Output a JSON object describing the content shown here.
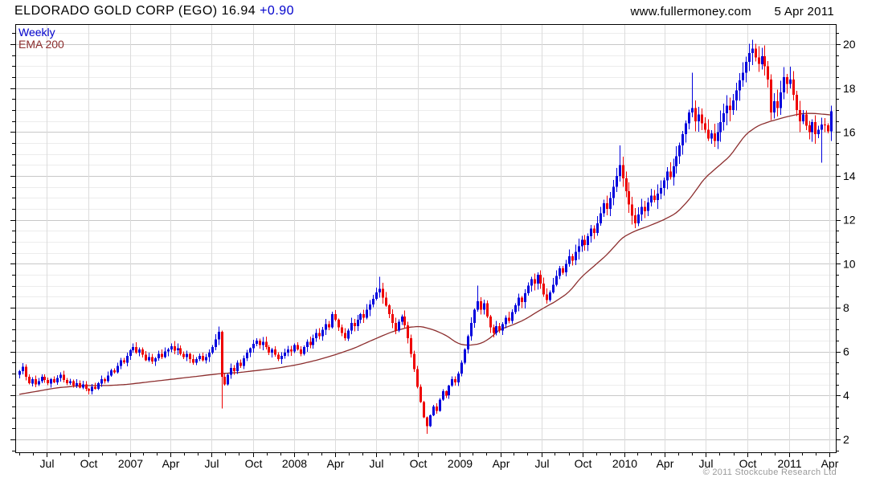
{
  "header": {
    "title": "ELDORADO GOLD CORP (EGO) 16.94",
    "change": "+0.90",
    "site": "www.fullermoney.com",
    "date": "5 Apr 2011"
  },
  "legend": {
    "series1": "Weekly",
    "series2": "EMA 200"
  },
  "footer": {
    "copyright": "© 2011 Stockcube Research Ltd"
  },
  "chart_data": {
    "type": "candlestick",
    "title": "ELDORADO GOLD CORP (EGO) weekly candlestick chart with 200-day EMA",
    "x_start": "May 2006",
    "x_end": "Apr 2011",
    "x_unit": "week",
    "ylim": [
      1.41,
      20.92
    ],
    "y_major_ticks": [
      2,
      4,
      6,
      8,
      10,
      12,
      14,
      16,
      18,
      20
    ],
    "y_minor_step": 0.5,
    "grid": true,
    "legend_position": "top-left",
    "last_price": 16.94,
    "change": 0.9,
    "up_color": "#0000dd",
    "down_color": "#ee0000",
    "ema_color": "#8c2e2e",
    "grid_major_color": "#c8c8c8",
    "grid_minor_color": "#ececec",
    "grid_vert_color": "#dcdcdc",
    "x_ticks": [
      [
        8.7,
        "Jul"
      ],
      [
        21.9,
        "Oct"
      ],
      [
        35.0,
        "2007"
      ],
      [
        47.9,
        "Apr"
      ],
      [
        60.9,
        "Jul"
      ],
      [
        74.0,
        "Oct"
      ],
      [
        87.1,
        "2008"
      ],
      [
        100.1,
        "Apr"
      ],
      [
        113.1,
        "Jul"
      ],
      [
        126.3,
        "Oct"
      ],
      [
        139.4,
        "2009"
      ],
      [
        152.3,
        "Apr"
      ],
      [
        165.3,
        "Jul"
      ],
      [
        178.4,
        "Oct"
      ],
      [
        191.6,
        "2010"
      ],
      [
        204.4,
        "Apr"
      ],
      [
        217.4,
        "Jul"
      ],
      [
        230.6,
        "Oct"
      ],
      [
        243.7,
        "2011"
      ],
      [
        256.6,
        "Apr"
      ]
    ],
    "x_minor_step_weeks": 4.348,
    "weekly_closes": [
      5.1,
      5.3,
      4.85,
      4.55,
      4.75,
      4.5,
      4.65,
      4.85,
      4.7,
      4.55,
      4.75,
      4.6,
      4.8,
      4.95,
      4.7,
      4.55,
      4.65,
      4.45,
      4.55,
      4.35,
      4.5,
      4.3,
      4.2,
      4.4,
      4.3,
      4.55,
      4.75,
      4.65,
      4.9,
      5.15,
      5.05,
      5.35,
      5.6,
      5.5,
      5.8,
      6.05,
      6.2,
      5.95,
      6.1,
      5.85,
      5.6,
      5.75,
      5.55,
      5.7,
      5.9,
      5.75,
      6.0,
      6.1,
      6.25,
      6.05,
      6.15,
      5.9,
      5.75,
      5.9,
      5.65,
      5.5,
      5.65,
      5.8,
      5.6,
      5.75,
      5.95,
      6.2,
      6.55,
      6.9,
      4.85,
      4.5,
      4.95,
      5.25,
      5.1,
      5.5,
      5.35,
      5.7,
      5.95,
      6.15,
      6.35,
      6.5,
      6.3,
      6.45,
      6.2,
      5.95,
      6.1,
      5.85,
      5.65,
      5.8,
      5.95,
      6.1,
      6.0,
      6.3,
      6.1,
      5.9,
      6.2,
      6.45,
      6.3,
      6.6,
      6.85,
      6.7,
      7.0,
      7.25,
      7.1,
      7.7,
      7.45,
      7.1,
      6.85,
      6.6,
      6.95,
      7.3,
      7.15,
      7.45,
      7.7,
      7.55,
      7.9,
      8.15,
      8.4,
      8.7,
      8.85,
      8.45,
      8.1,
      7.7,
      7.3,
      6.95,
      7.35,
      7.6,
      7.2,
      6.6,
      5.9,
      5.2,
      4.4,
      3.7,
      3.0,
      2.6,
      3.1,
      3.5,
      3.3,
      3.8,
      4.2,
      4.0,
      4.45,
      4.75,
      4.6,
      5.0,
      5.5,
      6.1,
      6.7,
      7.3,
      7.9,
      8.3,
      7.9,
      8.2,
      7.6,
      7.1,
      6.85,
      7.15,
      6.95,
      7.25,
      7.55,
      7.4,
      7.8,
      8.1,
      8.45,
      8.25,
      8.65,
      9.0,
      9.3,
      9.1,
      9.5,
      9.1,
      8.6,
      8.35,
      8.7,
      9.05,
      9.45,
      9.8,
      9.6,
      10.0,
      10.35,
      10.15,
      10.55,
      10.8,
      11.1,
      10.85,
      11.25,
      11.6,
      11.4,
      11.85,
      12.3,
      12.75,
      12.5,
      13.0,
      13.5,
      14.0,
      14.5,
      13.9,
      13.3,
      12.7,
      12.2,
      11.85,
      12.25,
      12.6,
      12.4,
      12.8,
      13.1,
      12.9,
      13.2,
      13.45,
      13.8,
      14.2,
      13.95,
      14.45,
      14.9,
      15.4,
      15.9,
      16.4,
      16.9,
      17.1,
      16.5,
      16.8,
      16.4,
      16.1,
      15.7,
      15.95,
      15.6,
      16.0,
      16.45,
      16.85,
      17.2,
      17.0,
      17.45,
      17.9,
      18.35,
      18.7,
      19.2,
      19.6,
      19.8,
      19.4,
      19.1,
      19.45,
      19.0,
      18.4,
      16.9,
      17.4,
      17.1,
      17.8,
      18.5,
      18.2,
      18.4,
      17.7,
      17.0,
      16.5,
      16.8,
      16.3,
      16.0,
      16.45,
      15.9,
      16.1,
      16.35,
      16.3,
      16.04,
      16.94
    ],
    "wick_overrides": {
      "64": {
        "low": 3.4
      },
      "114": {
        "high": 9.4
      },
      "129": {
        "low": 2.25
      },
      "145": {
        "high": 9.0
      },
      "190": {
        "high": 15.4
      },
      "213": {
        "high": 18.7
      },
      "232": {
        "high": 20.2
      },
      "254": {
        "low": 14.6
      }
    },
    "ema_anchors": [
      [
        0,
        4.05
      ],
      [
        6,
        4.2
      ],
      [
        12,
        4.35
      ],
      [
        20,
        4.45
      ],
      [
        28,
        4.45
      ],
      [
        34,
        4.5
      ],
      [
        40,
        4.6
      ],
      [
        46,
        4.7
      ],
      [
        52,
        4.8
      ],
      [
        58,
        4.9
      ],
      [
        64,
        5.0
      ],
      [
        70,
        5.05
      ],
      [
        76,
        5.15
      ],
      [
        82,
        5.25
      ],
      [
        88,
        5.4
      ],
      [
        94,
        5.6
      ],
      [
        100,
        5.85
      ],
      [
        106,
        6.15
      ],
      [
        113,
        6.6
      ],
      [
        118,
        6.9
      ],
      [
        123,
        7.1
      ],
      [
        127,
        7.15
      ],
      [
        131,
        7.0
      ],
      [
        135,
        6.75
      ],
      [
        139,
        6.35
      ],
      [
        142,
        6.28
      ],
      [
        146,
        6.35
      ],
      [
        149,
        6.6
      ],
      [
        152,
        7.0
      ],
      [
        156,
        7.2
      ],
      [
        160,
        7.45
      ],
      [
        165,
        7.9
      ],
      [
        170,
        8.3
      ],
      [
        174,
        8.7
      ],
      [
        178,
        9.4
      ],
      [
        182,
        9.9
      ],
      [
        186,
        10.4
      ],
      [
        191,
        11.2
      ],
      [
        195,
        11.5
      ],
      [
        199,
        11.7
      ],
      [
        204,
        12.0
      ],
      [
        208,
        12.3
      ],
      [
        212,
        12.9
      ],
      [
        217,
        13.9
      ],
      [
        221,
        14.4
      ],
      [
        225,
        14.9
      ],
      [
        230,
        15.9
      ],
      [
        234,
        16.3
      ],
      [
        238,
        16.5
      ],
      [
        243,
        16.7
      ],
      [
        248,
        16.85
      ],
      [
        252,
        16.85
      ],
      [
        257,
        16.78
      ]
    ]
  }
}
